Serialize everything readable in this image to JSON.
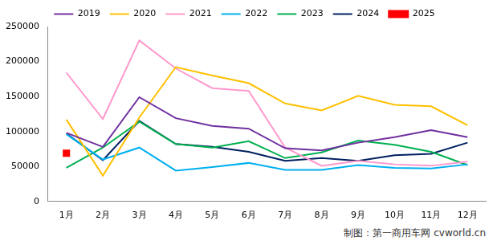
{
  "chart_data": {
    "type": "line",
    "caption": "制图：第一商用车网 cvworld.cn",
    "categories": [
      "1月",
      "2月",
      "3月",
      "4月",
      "5月",
      "6月",
      "7月",
      "8月",
      "9月",
      "10月",
      "11月",
      "12月"
    ],
    "series": [
      {
        "name": "2019",
        "color": "#7030a0",
        "marker": "none",
        "line_style": "solid",
        "values": [
          98000,
          78000,
          149000,
          119000,
          108000,
          104000,
          76000,
          73000,
          84000,
          92000,
          102000,
          92000
        ]
      },
      {
        "name": "2020",
        "color": "#ffc000",
        "marker": "none",
        "line_style": "solid",
        "values": [
          117000,
          37000,
          120000,
          192000,
          180000,
          169000,
          140000,
          130000,
          151000,
          138000,
          136000,
          109000
        ]
      },
      {
        "name": "2021",
        "color": "#ff99cc",
        "marker": "none",
        "line_style": "solid",
        "values": [
          184000,
          118000,
          230000,
          190000,
          162000,
          158000,
          77000,
          51000,
          58000,
          53000,
          51000,
          57000
        ]
      },
      {
        "name": "2022",
        "color": "#00b0f0",
        "marker": "none",
        "line_style": "solid",
        "values": [
          96000,
          60000,
          77000,
          44000,
          49000,
          55000,
          45000,
          45000,
          52000,
          48000,
          47000,
          53000
        ]
      },
      {
        "name": "2023",
        "color": "#00b050",
        "marker": "none",
        "line_style": "solid",
        "values": [
          48000,
          77000,
          114000,
          82000,
          77000,
          86000,
          62000,
          70000,
          87000,
          81000,
          71000,
          52000
        ]
      },
      {
        "name": "2024",
        "color": "#002060",
        "marker": "none",
        "line_style": "solid",
        "values": [
          97000,
          59000,
          115000,
          82000,
          78000,
          71000,
          58000,
          62000,
          58000,
          66000,
          68000,
          84000
        ]
      },
      {
        "name": "2025",
        "color": "#ff0000",
        "marker": "square",
        "line_style": "none",
        "values": [
          69000,
          null,
          null,
          null,
          null,
          null,
          null,
          null,
          null,
          null,
          null,
          null
        ]
      }
    ],
    "ylim": [
      0,
      250000
    ],
    "yticks": [
      0,
      50000,
      100000,
      150000,
      200000,
      250000
    ],
    "grid": false,
    "legend": "top"
  }
}
